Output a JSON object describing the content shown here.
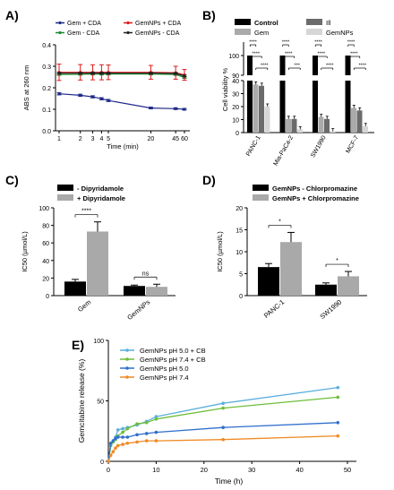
{
  "chart_data": [
    {
      "panel_label": "A)",
      "type": "line",
      "ylabel": "ABS at 260 nm",
      "xlabel": "Time (min)",
      "x_ticks": [
        "1",
        "2",
        "3",
        "4",
        "5",
        "20",
        "45",
        "60"
      ],
      "y_ticks": [
        "0.0",
        "0.1",
        "0.2",
        "0.3",
        "0.4"
      ],
      "ylim": [
        0,
        0.4
      ],
      "x_scale": "log",
      "series": [
        {
          "name": "Gem + CDA",
          "color": "#1f2a8a",
          "x": [
            1,
            2,
            3,
            4,
            5,
            20,
            45,
            60
          ],
          "y": [
            0.172,
            0.165,
            0.158,
            0.149,
            0.141,
            0.106,
            0.103,
            0.1
          ],
          "err": [
            0.005,
            0.005,
            0.005,
            0.005,
            0.005,
            0.004,
            0.004,
            0.004
          ]
        },
        {
          "name": "Gem - CDA",
          "color": "#1b8a2f",
          "x": [
            1,
            2,
            3,
            4,
            5,
            20,
            45,
            60
          ],
          "y": [
            0.262,
            0.263,
            0.264,
            0.264,
            0.264,
            0.264,
            0.262,
            0.248
          ],
          "err": [
            0.004,
            0.004,
            0.004,
            0.004,
            0.004,
            0.004,
            0.004,
            0.004
          ]
        },
        {
          "name": "GemNPs + CDA",
          "color": "#e01a1a",
          "x": [
            1,
            2,
            3,
            4,
            5,
            20,
            45,
            60
          ],
          "y": [
            0.272,
            0.272,
            0.272,
            0.272,
            0.272,
            0.272,
            0.27,
            0.26
          ],
          "err": [
            0.038,
            0.036,
            0.035,
            0.035,
            0.034,
            0.032,
            0.03,
            0.025
          ]
        },
        {
          "name": "GemNPs - CDA",
          "color": "#222222",
          "x": [
            1,
            2,
            3,
            4,
            5,
            20,
            45,
            60
          ],
          "y": [
            0.268,
            0.268,
            0.268,
            0.268,
            0.268,
            0.268,
            0.267,
            0.255
          ],
          "err": [
            0.004,
            0.004,
            0.004,
            0.004,
            0.004,
            0.004,
            0.004,
            0.004
          ]
        }
      ]
    },
    {
      "panel_label": "B)",
      "type": "bar",
      "ylabel": "Cell viability %",
      "categories": [
        "PANC-1",
        "Mia-PaCa-2",
        "SW1990",
        "MCF-7"
      ],
      "y_ticks_upper": [
        "90",
        "100"
      ],
      "y_ticks_lower": [
        "0",
        "10",
        "20",
        "30",
        "40"
      ],
      "ylim_upper": [
        90,
        100
      ],
      "ylim_lower": [
        0,
        40
      ],
      "sig_labels": [
        "****",
        "****",
        "****",
        "****",
        "****",
        "***",
        "****",
        "****",
        "****",
        "****",
        "****",
        "****"
      ],
      "series": [
        {
          "name": "Control",
          "color": "#000000",
          "values": [
            100,
            100,
            100,
            100
          ]
        },
        {
          "name": "Gem",
          "color": "#aaaaaa",
          "values": [
            37,
            10.5,
            12,
            19
          ]
        },
        {
          "name": "",
          "legend_label": "Ill",
          "color": "#6b6b6b",
          "values": [
            36,
            10.5,
            10.5,
            17
          ]
        },
        {
          "name": "GemNPs",
          "color": "#d6d6d6",
          "values": [
            20,
            2.5,
            1,
            5
          ]
        }
      ]
    },
    {
      "panel_label": "C)",
      "type": "bar",
      "ylabel": "IC50 (µmol/L)",
      "y_ticks": [
        "0",
        "20",
        "40",
        "60",
        "80",
        "100"
      ],
      "ylim": [
        0,
        100
      ],
      "categories": [
        "Gem",
        "GemNPs"
      ],
      "sig_labels": [
        "****",
        "ns"
      ],
      "series": [
        {
          "name": "- Dipyridamole",
          "color": "#000000",
          "values": [
            16,
            11
          ],
          "err": [
            2.5,
            1
          ]
        },
        {
          "name": "+ Dipyridamole",
          "color": "#a9a9a9",
          "values": [
            73,
            10
          ],
          "err": [
            11,
            3
          ]
        }
      ]
    },
    {
      "panel_label": "D)",
      "type": "bar",
      "ylabel": "IC50 (µmol/L)",
      "y_ticks": [
        "0",
        "5",
        "10",
        "15",
        "20"
      ],
      "ylim": [
        0,
        20
      ],
      "categories": [
        "PANC-1",
        "SW1990"
      ],
      "sig_labels": [
        "*",
        "*"
      ],
      "series": [
        {
          "name": "GemNPs - Chlorpromazine",
          "color": "#000000",
          "values": [
            6.5,
            2.5
          ],
          "err": [
            0.8,
            0.4
          ]
        },
        {
          "name": "GemNPs + Chlorpromazine",
          "color": "#a9a9a9",
          "values": [
            12.2,
            4.4
          ],
          "err": [
            2.2,
            1.1
          ]
        }
      ]
    },
    {
      "panel_label": "E)",
      "type": "line",
      "ylabel": "Gemcitabine release (%)",
      "xlabel": "Time (h)",
      "x_ticks": [
        "0",
        "10",
        "20",
        "30",
        "40",
        "50"
      ],
      "y_ticks": [
        "0",
        "50",
        "100"
      ],
      "xlim": [
        0,
        50
      ],
      "ylim": [
        0,
        100
      ],
      "series": [
        {
          "name": "GemNPs  pH 5.0 + CB",
          "color": "#5aaedc",
          "x": [
            0,
            0.5,
            1,
            1.5,
            2,
            3,
            4,
            6,
            8,
            10,
            24,
            48
          ],
          "y": [
            0,
            14,
            17,
            20,
            26,
            27,
            28,
            30,
            33,
            37,
            48,
            61
          ]
        },
        {
          "name": "GemNPs  pH 7.4 + CB",
          "color": "#6fbd3a",
          "x": [
            0,
            0.5,
            1,
            1.5,
            2,
            3,
            4,
            6,
            8,
            10,
            24,
            48
          ],
          "y": [
            0,
            13,
            16,
            18,
            21,
            24,
            27,
            31,
            32,
            35,
            44,
            53
          ]
        },
        {
          "name": "GemNPs  pH 5.0",
          "color": "#2f6fcc",
          "x": [
            0,
            0.5,
            1,
            1.5,
            2,
            3,
            4,
            6,
            8,
            10,
            24,
            48
          ],
          "y": [
            0,
            15,
            17,
            19,
            20,
            20,
            20,
            22,
            23,
            24,
            28,
            32
          ]
        },
        {
          "name": "GemNPs  pH 7.4",
          "color": "#f08a24",
          "x": [
            0,
            0.5,
            1,
            1.5,
            2,
            3,
            4,
            6,
            8,
            10,
            24,
            48
          ],
          "y": [
            0,
            5,
            8,
            11,
            13,
            14,
            15,
            16,
            17,
            17,
            18,
            21
          ]
        }
      ]
    }
  ]
}
